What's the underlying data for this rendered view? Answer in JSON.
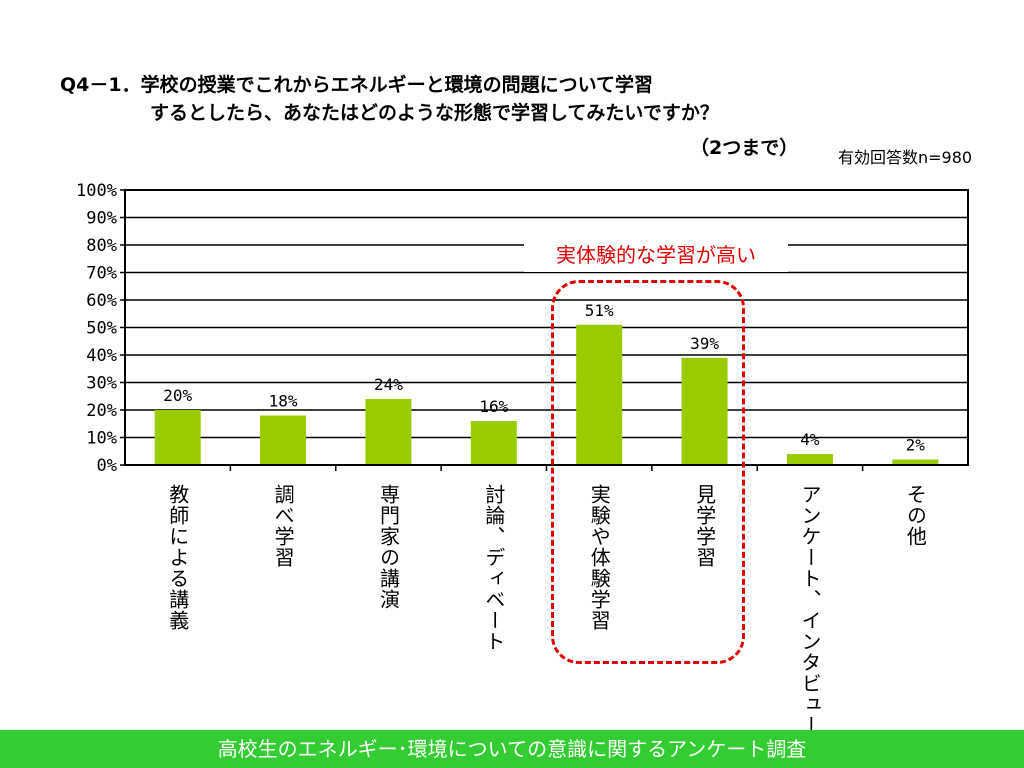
{
  "title": {
    "line1": "Q4－1．学校の授業でこれからエネルギーと環境の問題について学習",
    "line2": "するとしたら、あなたはどのような形態で学習してみたいですか？",
    "line3": "（2つまで）"
  },
  "respondents": "有効回答数n=980",
  "callout": "実体験的な学習が高い",
  "footer": "高校生のエネルギー･環境についての意識に関するアンケート調査",
  "chart_data": {
    "type": "bar",
    "categories": [
      "教師による講義",
      "調べ学習",
      "専門家の講演",
      "討論、ディベート",
      "実験や体験学習",
      "見学学習",
      "アンケート、インタビュー",
      "その他"
    ],
    "values": [
      20,
      18,
      24,
      16,
      51,
      39,
      4,
      2
    ],
    "value_labels": [
      "20%",
      "18%",
      "24%",
      "16%",
      "51%",
      "39%",
      "4%",
      "2%"
    ],
    "yticks": [
      "0%",
      "10%",
      "20%",
      "30%",
      "40%",
      "50%",
      "60%",
      "70%",
      "80%",
      "90%",
      "100%"
    ],
    "ylim": [
      0,
      100
    ],
    "grid": true,
    "bar_color": "#99cc00",
    "highlight_color": "#e00000",
    "footer_color": "#33cc33"
  }
}
